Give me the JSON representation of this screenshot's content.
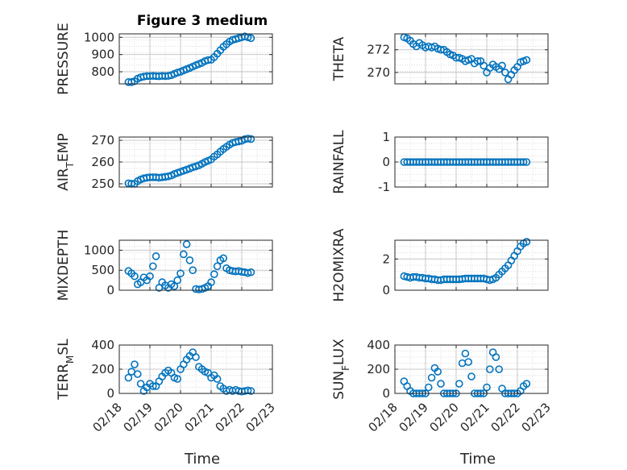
{
  "figure_title": "Figure 3 medium",
  "colors": {
    "marker": "#0072BD",
    "axis": "#262626",
    "grid": "#DCDCDC"
  },
  "chart_data": [
    {
      "type": "scatter",
      "title": "Figure 3 medium",
      "ylabel": "PRESSURE",
      "xlabel": "",
      "xlim": [
        0,
        5
      ],
      "ylim": [
        730,
        1020
      ],
      "yticks": [
        800,
        900,
        1000
      ],
      "ytick_labels": [
        "800",
        "900",
        "1000"
      ],
      "grid": true,
      "x": [
        0.3,
        0.4,
        0.5,
        0.6,
        0.7,
        0.8,
        0.9,
        1.0,
        1.1,
        1.2,
        1.3,
        1.4,
        1.5,
        1.6,
        1.7,
        1.8,
        1.9,
        2.0,
        2.1,
        2.2,
        2.3,
        2.4,
        2.5,
        2.6,
        2.7,
        2.8,
        2.9,
        3.0,
        3.1,
        3.2,
        3.3,
        3.4,
        3.5,
        3.6,
        3.7,
        3.8,
        3.9,
        4.0,
        4.1,
        4.2,
        4.3
      ],
      "y": [
        740,
        740,
        745,
        760,
        768,
        772,
        775,
        775,
        776,
        775,
        774,
        776,
        775,
        776,
        780,
        788,
        795,
        800,
        808,
        815,
        822,
        830,
        838,
        845,
        852,
        862,
        868,
        870,
        885,
        905,
        925,
        945,
        960,
        975,
        985,
        990,
        995,
        1000,
        1005,
        1000,
        995
      ]
    },
    {
      "type": "scatter",
      "ylabel": "THETA",
      "xlabel": "",
      "xlim": [
        0,
        5
      ],
      "ylim": [
        269,
        273.4
      ],
      "yticks": [
        270,
        272
      ],
      "ytick_labels": [
        "270",
        "272"
      ],
      "grid": true,
      "x": [
        0.3,
        0.4,
        0.5,
        0.6,
        0.7,
        0.8,
        0.9,
        1.0,
        1.1,
        1.2,
        1.3,
        1.4,
        1.5,
        1.6,
        1.7,
        1.8,
        1.9,
        2.0,
        2.1,
        2.2,
        2.3,
        2.4,
        2.5,
        2.6,
        2.7,
        2.8,
        2.9,
        3.0,
        3.1,
        3.2,
        3.3,
        3.4,
        3.5,
        3.6,
        3.7,
        3.8,
        3.9,
        4.0,
        4.1,
        4.2,
        4.3
      ],
      "y": [
        273.1,
        273.0,
        272.8,
        272.5,
        272.3,
        272.6,
        272.4,
        272.2,
        272.3,
        272.2,
        272.3,
        272.1,
        272.0,
        272.0,
        271.8,
        271.6,
        271.5,
        271.3,
        271.3,
        271.2,
        271.0,
        271.1,
        271.2,
        270.8,
        271.0,
        271.0,
        270.6,
        270.0,
        270.4,
        270.7,
        270.5,
        270.3,
        270.6,
        270.0,
        269.4,
        269.8,
        270.2,
        270.5,
        270.9,
        271.0,
        271.1
      ]
    },
    {
      "type": "scatter",
      "ylabel": "AIR_T_EMP",
      "xlabel": "",
      "xlim": [
        0,
        5
      ],
      "ylim": [
        248.5,
        271.5
      ],
      "yticks": [
        250,
        260,
        270
      ],
      "ytick_labels": [
        "250",
        "260",
        "270"
      ],
      "grid": true,
      "x": [
        0.3,
        0.4,
        0.5,
        0.6,
        0.7,
        0.8,
        0.9,
        1.0,
        1.1,
        1.2,
        1.3,
        1.4,
        1.5,
        1.6,
        1.7,
        1.8,
        1.9,
        2.0,
        2.1,
        2.2,
        2.3,
        2.4,
        2.5,
        2.6,
        2.7,
        2.8,
        2.9,
        3.0,
        3.1,
        3.2,
        3.3,
        3.4,
        3.5,
        3.6,
        3.7,
        3.8,
        3.9,
        4.0,
        4.1,
        4.2,
        4.3
      ],
      "y": [
        250.2,
        250.0,
        250.0,
        251.2,
        252.0,
        252.5,
        252.8,
        253.0,
        253.0,
        253.0,
        252.8,
        253.0,
        253.2,
        253.4,
        253.8,
        254.5,
        255.0,
        255.5,
        256.0,
        256.5,
        257.0,
        257.6,
        258.0,
        258.5,
        259.2,
        260.0,
        260.6,
        261.2,
        262.5,
        263.5,
        264.8,
        266.0,
        267.0,
        268.0,
        268.8,
        269.2,
        269.5,
        269.8,
        270.5,
        270.8,
        270.6
      ]
    },
    {
      "type": "scatter",
      "ylabel": "RAINFALL",
      "xlabel": "",
      "xlim": [
        0,
        5
      ],
      "ylim": [
        -1,
        1
      ],
      "yticks": [
        -1,
        0,
        1
      ],
      "ytick_labels": [
        "-1",
        "0",
        "1"
      ],
      "grid": true,
      "x": [
        0.3,
        0.4,
        0.5,
        0.6,
        0.7,
        0.8,
        0.9,
        1.0,
        1.1,
        1.2,
        1.3,
        1.4,
        1.5,
        1.6,
        1.7,
        1.8,
        1.9,
        2.0,
        2.1,
        2.2,
        2.3,
        2.4,
        2.5,
        2.6,
        2.7,
        2.8,
        2.9,
        3.0,
        3.1,
        3.2,
        3.3,
        3.4,
        3.5,
        3.6,
        3.7,
        3.8,
        3.9,
        4.0,
        4.1,
        4.2,
        4.3
      ],
      "y": [
        0,
        0,
        0,
        0,
        0,
        0,
        0,
        0,
        0,
        0,
        0,
        0,
        0,
        0,
        0,
        0,
        0,
        0,
        0,
        0,
        0,
        0,
        0,
        0,
        0,
        0,
        0,
        0,
        0,
        0,
        0,
        0,
        0,
        0,
        0,
        0,
        0,
        0,
        0,
        0,
        0
      ]
    },
    {
      "type": "scatter",
      "ylabel": "MIXDEPTH",
      "xlabel": "",
      "xlim": [
        0,
        5
      ],
      "ylim": [
        0,
        1250
      ],
      "yticks": [
        0,
        500,
        1000
      ],
      "ytick_labels": [
        "0",
        "500",
        "1000"
      ],
      "grid": true,
      "x": [
        0.3,
        0.4,
        0.5,
        0.6,
        0.7,
        0.8,
        0.9,
        1.0,
        1.1,
        1.2,
        1.3,
        1.4,
        1.5,
        1.6,
        1.7,
        1.8,
        1.9,
        2.0,
        2.1,
        2.2,
        2.3,
        2.4,
        2.5,
        2.6,
        2.7,
        2.8,
        2.9,
        3.0,
        3.1,
        3.2,
        3.3,
        3.4,
        3.5,
        3.6,
        3.7,
        3.8,
        3.9,
        4.0,
        4.1,
        4.2,
        4.3
      ],
      "y": [
        480,
        420,
        350,
        150,
        200,
        320,
        250,
        350,
        600,
        850,
        60,
        200,
        120,
        60,
        150,
        100,
        250,
        420,
        900,
        1150,
        750,
        500,
        30,
        20,
        30,
        60,
        100,
        200,
        400,
        600,
        750,
        800,
        550,
        500,
        480,
        470,
        480,
        460,
        450,
        430,
        450
      ]
    },
    {
      "type": "scatter",
      "ylabel": "H2OMIXRA",
      "xlabel": "",
      "xlim": [
        0,
        5
      ],
      "ylim": [
        0,
        3.2
      ],
      "yticks": [
        0,
        2
      ],
      "ytick_labels": [
        "0",
        "2"
      ],
      "grid": true,
      "x": [
        0.3,
        0.4,
        0.5,
        0.6,
        0.7,
        0.8,
        0.9,
        1.0,
        1.1,
        1.2,
        1.3,
        1.4,
        1.5,
        1.6,
        1.7,
        1.8,
        1.9,
        2.0,
        2.1,
        2.2,
        2.3,
        2.4,
        2.5,
        2.6,
        2.7,
        2.8,
        2.9,
        3.0,
        3.1,
        3.2,
        3.3,
        3.4,
        3.5,
        3.6,
        3.7,
        3.8,
        3.9,
        4.0,
        4.1,
        4.2,
        4.3
      ],
      "y": [
        0.9,
        0.85,
        0.8,
        0.85,
        0.85,
        0.8,
        0.8,
        0.75,
        0.75,
        0.7,
        0.7,
        0.65,
        0.65,
        0.7,
        0.7,
        0.7,
        0.7,
        0.7,
        0.7,
        0.72,
        0.75,
        0.75,
        0.75,
        0.75,
        0.75,
        0.75,
        0.75,
        0.7,
        0.65,
        0.7,
        0.8,
        1.0,
        1.2,
        1.4,
        1.6,
        1.9,
        2.2,
        2.5,
        2.8,
        3.0,
        3.1
      ]
    },
    {
      "type": "scatter",
      "ylabel": "TERR_M_SL",
      "xlabel": "Time",
      "xlim": [
        0,
        5
      ],
      "ylim": [
        0,
        400
      ],
      "yticks": [
        0,
        200,
        400
      ],
      "ytick_labels": [
        "0",
        "200",
        "400"
      ],
      "xticks": [
        0,
        1,
        2,
        3,
        4,
        5
      ],
      "xtick_labels": [
        "02/18",
        "02/19",
        "02/20",
        "02/21",
        "02/22",
        "02/23"
      ],
      "grid": true,
      "x": [
        0.3,
        0.4,
        0.5,
        0.6,
        0.7,
        0.8,
        0.9,
        1.0,
        1.1,
        1.2,
        1.3,
        1.4,
        1.5,
        1.6,
        1.7,
        1.8,
        1.9,
        2.0,
        2.1,
        2.2,
        2.3,
        2.4,
        2.5,
        2.6,
        2.7,
        2.8,
        2.9,
        3.0,
        3.1,
        3.2,
        3.3,
        3.4,
        3.5,
        3.6,
        3.7,
        3.8,
        3.9,
        4.0,
        4.1,
        4.2,
        4.3
      ],
      "y": [
        130,
        180,
        240,
        160,
        80,
        20,
        50,
        80,
        60,
        60,
        100,
        140,
        170,
        190,
        170,
        130,
        120,
        200,
        240,
        280,
        310,
        340,
        300,
        220,
        200,
        180,
        170,
        130,
        150,
        120,
        60,
        40,
        20,
        30,
        20,
        30,
        20,
        15,
        20,
        25,
        20
      ]
    },
    {
      "type": "scatter",
      "ylabel": "SUN_F_LUX",
      "xlabel": "Time",
      "xlim": [
        0,
        5
      ],
      "ylim": [
        0,
        400
      ],
      "yticks": [
        0,
        200,
        400
      ],
      "ytick_labels": [
        "0",
        "200",
        "400"
      ],
      "xticks": [
        0,
        1,
        2,
        3,
        4,
        5
      ],
      "xtick_labels": [
        "02/18",
        "02/19",
        "02/20",
        "02/21",
        "02/22",
        "02/23"
      ],
      "grid": true,
      "x": [
        0.3,
        0.4,
        0.5,
        0.6,
        0.7,
        0.8,
        0.9,
        1.0,
        1.1,
        1.2,
        1.3,
        1.4,
        1.5,
        1.6,
        1.7,
        1.8,
        1.9,
        2.0,
        2.1,
        2.2,
        2.3,
        2.4,
        2.5,
        2.6,
        2.7,
        2.8,
        2.9,
        3.0,
        3.1,
        3.2,
        3.3,
        3.4,
        3.5,
        3.6,
        3.7,
        3.8,
        3.9,
        4.0,
        4.1,
        4.2,
        4.3
      ],
      "y": [
        100,
        60,
        20,
        0,
        0,
        0,
        0,
        0,
        50,
        130,
        210,
        180,
        80,
        0,
        0,
        0,
        0,
        0,
        80,
        250,
        330,
        260,
        140,
        0,
        0,
        0,
        0,
        50,
        200,
        340,
        300,
        200,
        40,
        0,
        0,
        0,
        0,
        0,
        20,
        60,
        80
      ]
    }
  ]
}
